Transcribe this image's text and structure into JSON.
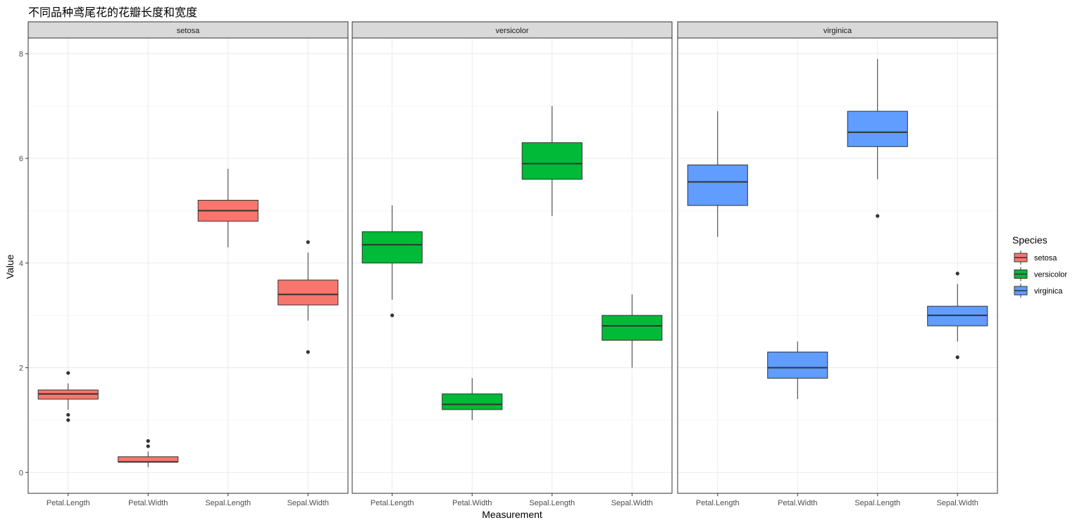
{
  "chart_data": {
    "type": "boxplot",
    "title": "不同品种鸢尾花的花瓣长度和宽度",
    "xlabel": "Measurement",
    "ylabel": "Value",
    "ylim": [
      -0.4,
      8.3
    ],
    "yticks": [
      0,
      2,
      4,
      6,
      8
    ],
    "categories": [
      "Petal.Length",
      "Petal.Width",
      "Sepal.Length",
      "Sepal.Width"
    ],
    "grid": true,
    "legend": {
      "title": "Species",
      "position": "right"
    },
    "facets": [
      {
        "name": "setosa",
        "color": "#F8766D",
        "boxes": [
          {
            "category": "Petal.Length",
            "lower_whisker": 1.2,
            "q1": 1.4,
            "median": 1.5,
            "q3": 1.575,
            "upper_whisker": 1.7,
            "outliers": [
              1.0,
              1.1,
              1.9
            ]
          },
          {
            "category": "Petal.Width",
            "lower_whisker": 0.1,
            "q1": 0.2,
            "median": 0.2,
            "q3": 0.3,
            "upper_whisker": 0.4,
            "outliers": [
              0.5,
              0.6
            ]
          },
          {
            "category": "Sepal.Length",
            "lower_whisker": 4.3,
            "q1": 4.8,
            "median": 5.0,
            "q3": 5.2,
            "upper_whisker": 5.8,
            "outliers": []
          },
          {
            "category": "Sepal.Width",
            "lower_whisker": 2.9,
            "q1": 3.2,
            "median": 3.4,
            "q3": 3.675,
            "upper_whisker": 4.2,
            "outliers": [
              2.3,
              4.4
            ]
          }
        ]
      },
      {
        "name": "versicolor",
        "color": "#00BA38",
        "boxes": [
          {
            "category": "Petal.Length",
            "lower_whisker": 3.3,
            "q1": 4.0,
            "median": 4.35,
            "q3": 4.6,
            "upper_whisker": 5.1,
            "outliers": [
              3.0
            ]
          },
          {
            "category": "Petal.Width",
            "lower_whisker": 1.0,
            "q1": 1.2,
            "median": 1.3,
            "q3": 1.5,
            "upper_whisker": 1.8,
            "outliers": []
          },
          {
            "category": "Sepal.Length",
            "lower_whisker": 4.9,
            "q1": 5.6,
            "median": 5.9,
            "q3": 6.3,
            "upper_whisker": 7.0,
            "outliers": []
          },
          {
            "category": "Sepal.Width",
            "lower_whisker": 2.0,
            "q1": 2.525,
            "median": 2.8,
            "q3": 3.0,
            "upper_whisker": 3.4,
            "outliers": []
          }
        ]
      },
      {
        "name": "virginica",
        "color": "#619CFF",
        "boxes": [
          {
            "category": "Petal.Length",
            "lower_whisker": 4.5,
            "q1": 5.1,
            "median": 5.55,
            "q3": 5.875,
            "upper_whisker": 6.9,
            "outliers": []
          },
          {
            "category": "Petal.Width",
            "lower_whisker": 1.4,
            "q1": 1.8,
            "median": 2.0,
            "q3": 2.3,
            "upper_whisker": 2.5,
            "outliers": []
          },
          {
            "category": "Sepal.Length",
            "lower_whisker": 5.6,
            "q1": 6.225,
            "median": 6.5,
            "q3": 6.9,
            "upper_whisker": 7.9,
            "outliers": [
              4.9
            ]
          },
          {
            "category": "Sepal.Width",
            "lower_whisker": 2.5,
            "q1": 2.8,
            "median": 3.0,
            "q3": 3.175,
            "upper_whisker": 3.6,
            "outliers": [
              2.2,
              3.8
            ]
          }
        ]
      }
    ]
  }
}
